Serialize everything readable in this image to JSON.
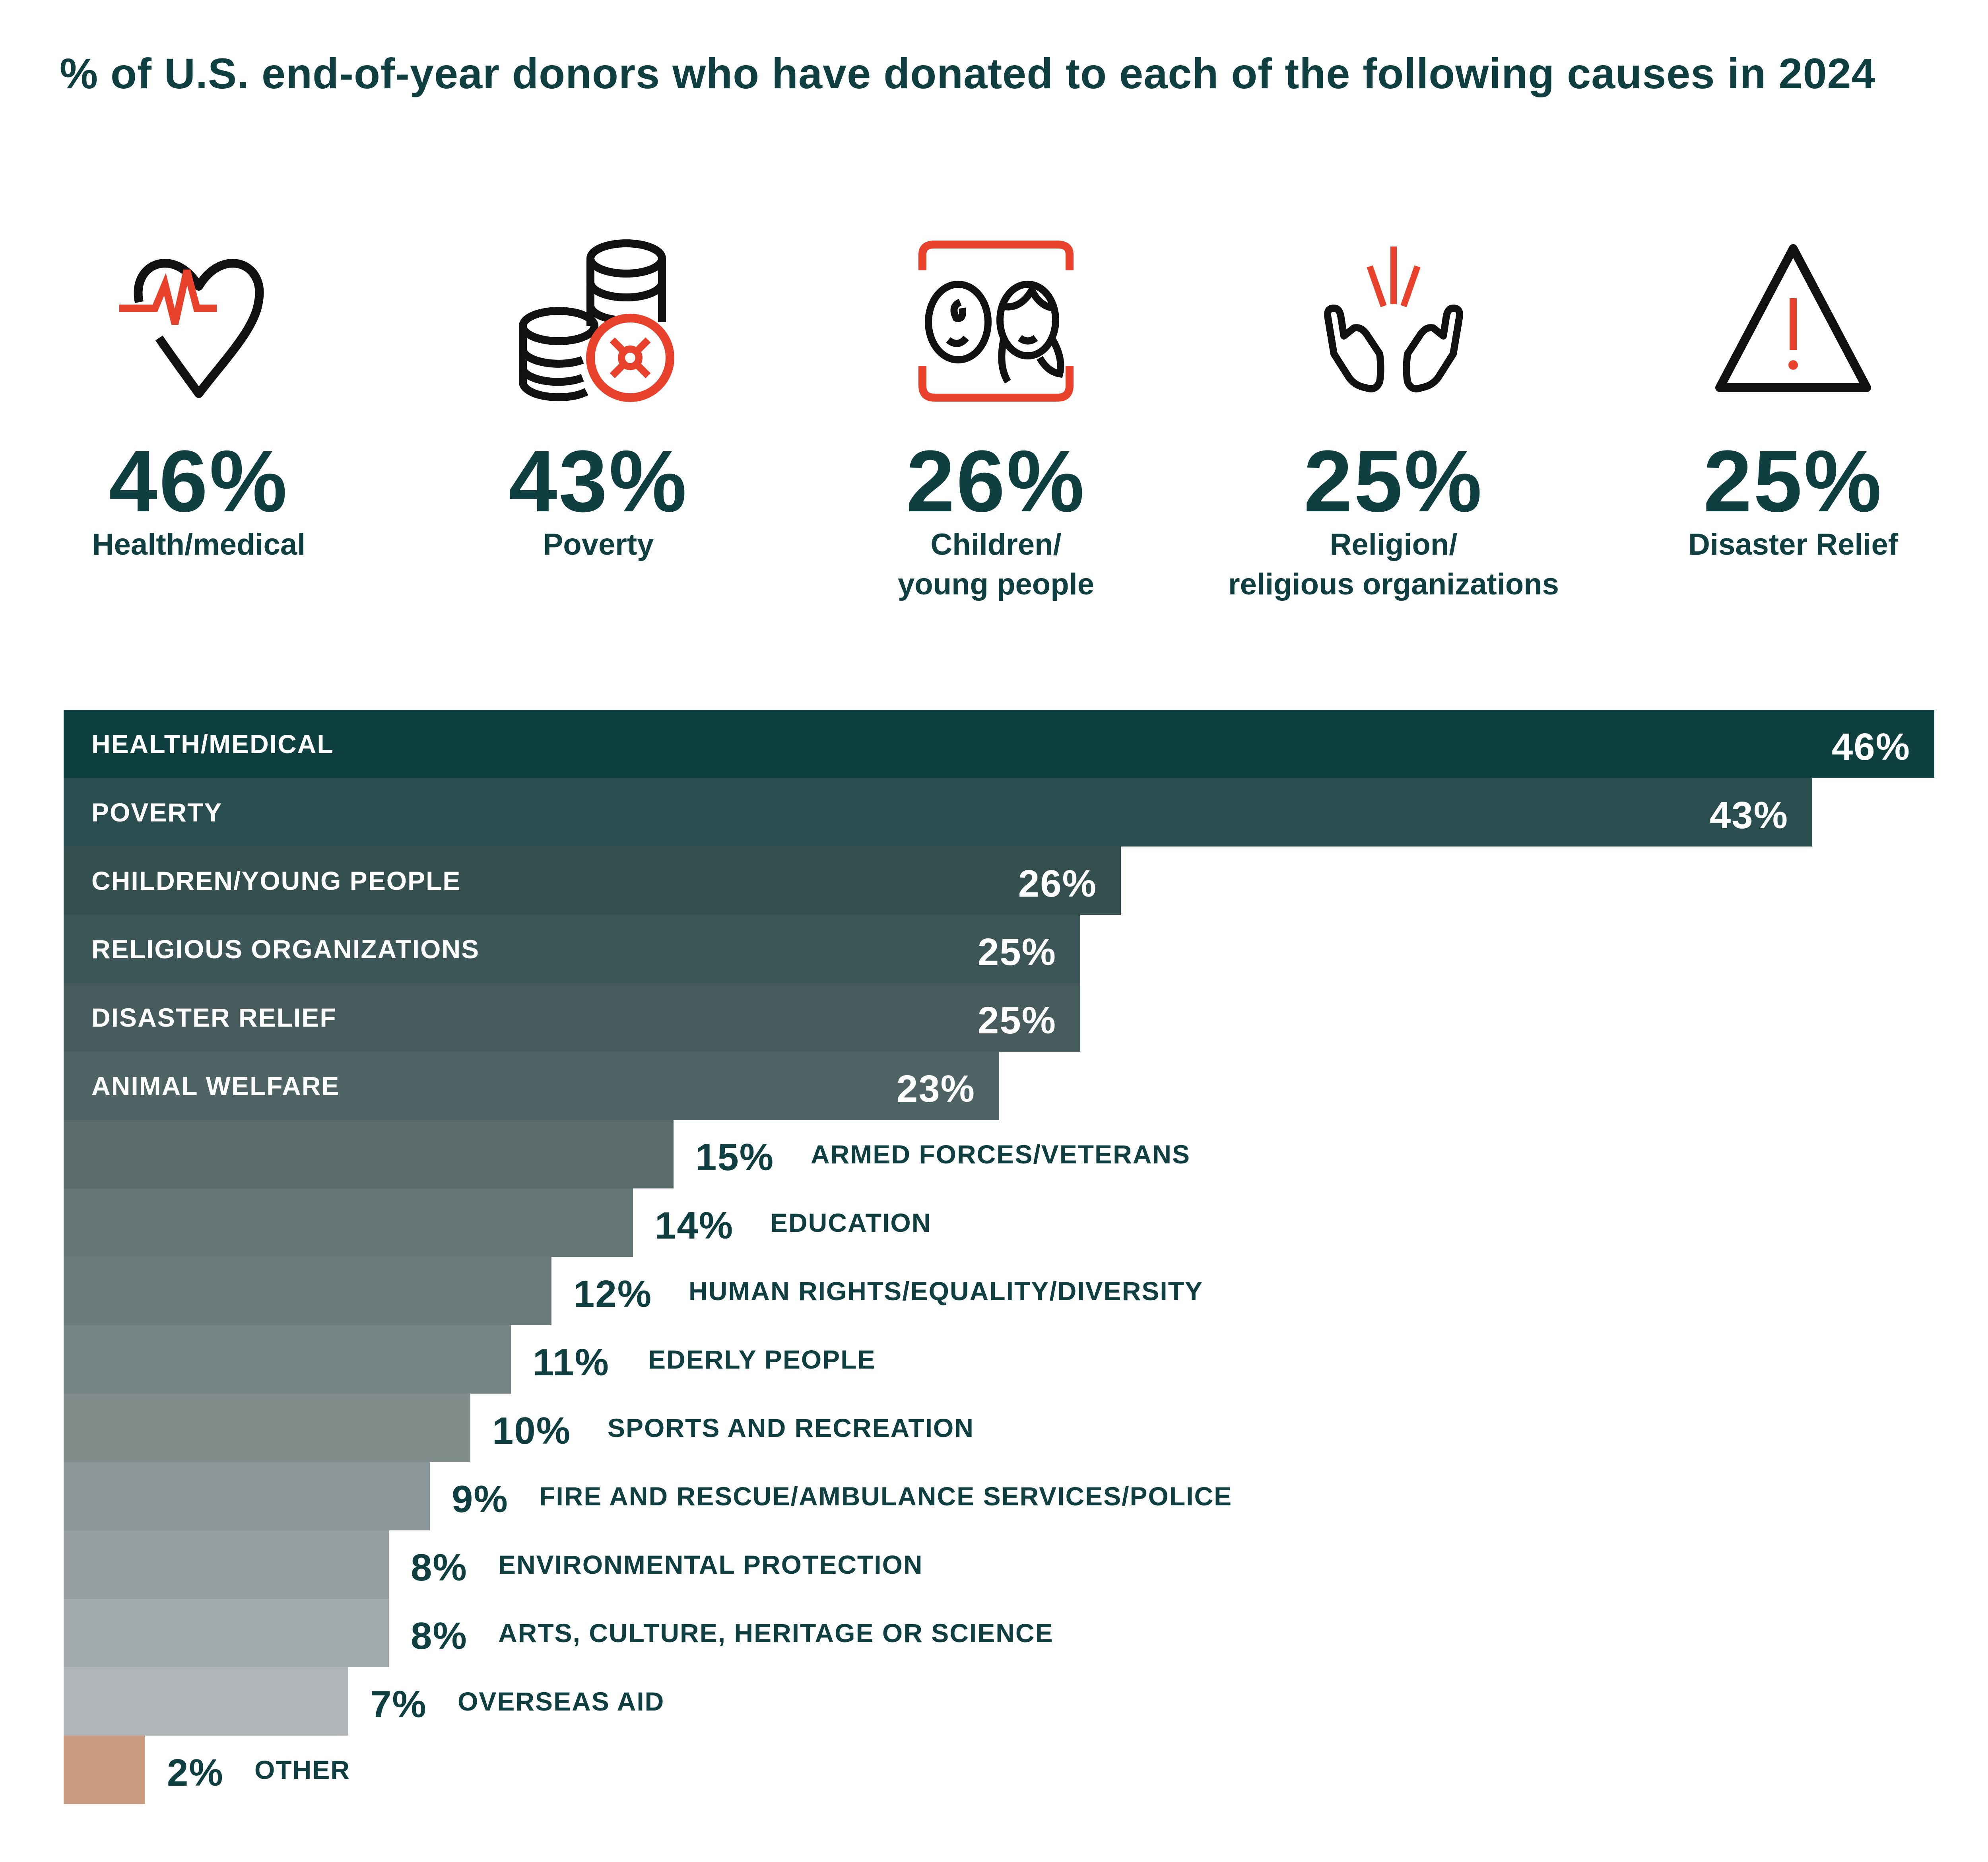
{
  "title": "% of U.S. end-of-year donors who have donated to each of the following causes in 2024",
  "highlights": [
    {
      "icon": "heartbeat-icon",
      "value": "46%",
      "label_lines": [
        "Health/medical"
      ]
    },
    {
      "icon": "coins-icon",
      "value": "43%",
      "label_lines": [
        "Poverty"
      ]
    },
    {
      "icon": "children-icon",
      "value": "26%",
      "label_lines": [
        "Children/",
        "young people"
      ]
    },
    {
      "icon": "praying-hands-icon",
      "value": "25%",
      "label_lines": [
        "Religion/",
        "religious organizations"
      ]
    },
    {
      "icon": "warning-triangle-icon",
      "value": "25%",
      "label_lines": [
        "Disaster Relief"
      ]
    }
  ],
  "colors": {
    "text": "#0f3f40",
    "accent": "#e8412c",
    "icon_stroke": "#111111",
    "other_bar": "#c99a7f"
  },
  "chart_data": {
    "type": "bar",
    "orientation": "horizontal",
    "title": "% of U.S. end-of-year donors who have donated to each of the following causes in 2024",
    "xlabel": "",
    "ylabel": "",
    "unit": "%",
    "xlim": [
      0,
      46
    ],
    "grid": false,
    "legend": "none",
    "categories": [
      "HEALTH/MEDICAL",
      "POVERTY",
      "CHILDREN/YOUNG PEOPLE",
      "RELIGIOUS ORGANIZATIONS",
      "DISASTER RELIEF",
      "ANIMAL WELFARE",
      "ARMED FORCES/VETERANS",
      "EDUCATION",
      "HUMAN RIGHTS/EQUALITY/DIVERSITY",
      "EDERLY PEOPLE",
      "SPORTS AND RECREATION",
      "FIRE AND RESCUE/AMBULANCE SERVICES/POLICE",
      "ENVIRONMENTAL PROTECTION",
      "ARTS, CULTURE, HERITAGE OR SCIENCE",
      "OVERSEAS AID",
      "OTHER"
    ],
    "values": [
      46,
      43,
      26,
      25,
      25,
      23,
      15,
      14,
      12,
      11,
      10,
      9,
      8,
      8,
      7,
      2
    ],
    "value_labels": [
      "46%",
      "43%",
      "26%",
      "25%",
      "25%",
      "23%",
      "15%",
      "14%",
      "12%",
      "11%",
      "10%",
      "9%",
      "8%",
      "8%",
      "7%",
      "2%"
    ],
    "bar_colors": [
      "#0f4040",
      "#2a4d4f",
      "#33504f",
      "#3d5658",
      "#465b5c",
      "#4f6465",
      "#5a6b6c",
      "#647576",
      "#6b7b7c",
      "#778486",
      "#7f8c8a",
      "#8a9697",
      "#969ea0",
      "#a3aaab",
      "#b0b5b7",
      "#c99a7f"
    ]
  }
}
